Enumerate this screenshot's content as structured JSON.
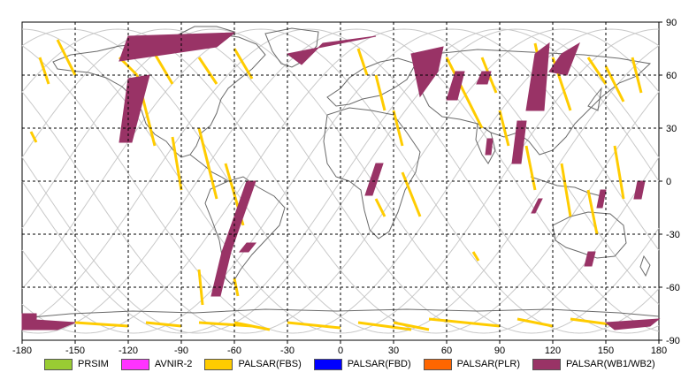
{
  "map": {
    "x_ticks": [
      "-180",
      "-150",
      "-120",
      "-90",
      "-60",
      "-30",
      "0",
      "30",
      "60",
      "90",
      "120",
      "150",
      "180"
    ],
    "y_ticks": [
      "90",
      "60",
      "30",
      "0",
      "-30",
      "-60",
      "-90"
    ]
  },
  "legend": [
    {
      "label": "PRSIM",
      "color": "#99cc33"
    },
    {
      "label": "AVNIR-2",
      "color": "#ff33ff"
    },
    {
      "label": "PALSAR(FBS)",
      "color": "#ffcc00"
    },
    {
      "label": "PALSAR(FBD)",
      "color": "#0000ff"
    },
    {
      "label": "PALSAR(PLR)",
      "color": "#ff6600"
    },
    {
      "label": "PALSAR(WB1/WB2)",
      "color": "#993366"
    }
  ],
  "colors": {
    "coastline": "#6a6a6a",
    "orbit": "#c8c8c8",
    "grid": "#000000",
    "fbs": "#ffcc00",
    "wb": "#993366"
  },
  "icons": [
    "map-frame"
  ]
}
